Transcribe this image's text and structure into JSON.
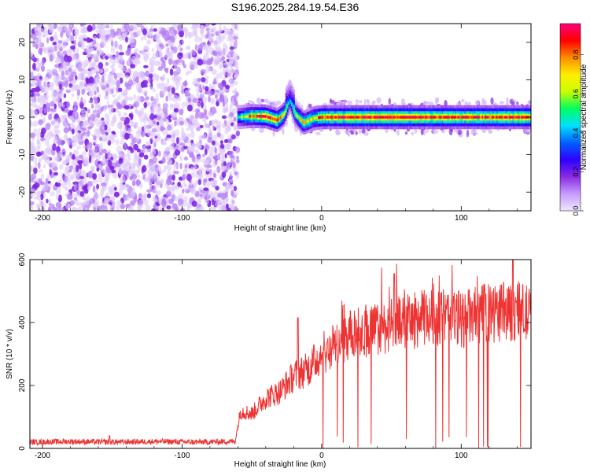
{
  "title": "S196.2025.284.19.54.E36",
  "chart_data": [
    {
      "type": "heatmap",
      "xlabel": "Height of straight line (km)",
      "ylabel": "Frequency (Hz)",
      "xlim": [
        -209,
        150
      ],
      "ylim": [
        -25,
        25
      ],
      "xticks": [
        -200,
        -100,
        0,
        100
      ],
      "yticks": [
        -20,
        -10,
        0,
        10,
        20
      ],
      "colorbar": {
        "label": "Normalized spectral amplitude",
        "range": [
          0,
          0.96
        ],
        "ticks": [
          0.0,
          0.2,
          0.4,
          0.6,
          0.8
        ],
        "tick_labels": [
          "0.0",
          "0.2",
          "0.4",
          "0.6",
          "0.8"
        ],
        "colors": [
          "#f0e8ff",
          "#c79bff",
          "#8a2be2",
          "#2f00ff",
          "#0060ff",
          "#00e0ff",
          "#00ff60",
          "#c8ff00",
          "#ffee00",
          "#ff8c00",
          "#ff0000",
          "#ff0080"
        ]
      },
      "noise_region": {
        "x_range": [
          -209,
          -60
        ],
        "amplitude_range": [
          0.0,
          0.12
        ]
      },
      "signal_ridge": [
        {
          "x": -60,
          "y": 0.0,
          "amplitude": 0.5
        },
        {
          "x": -50,
          "y": 0.3,
          "amplitude": 0.8
        },
        {
          "x": -40,
          "y": 0.2,
          "amplitude": 0.9
        },
        {
          "x": -32,
          "y": -0.8,
          "amplitude": 0.85
        },
        {
          "x": -27,
          "y": 0.8,
          "amplitude": 0.7
        },
        {
          "x": -23,
          "y": 4.5,
          "amplitude": 0.35
        },
        {
          "x": -19,
          "y": 0.8,
          "amplitude": 0.6
        },
        {
          "x": -13,
          "y": -1.5,
          "amplitude": 0.75
        },
        {
          "x": -6,
          "y": -0.3,
          "amplitude": 0.7
        },
        {
          "x": 0,
          "y": 0.0,
          "amplitude": 0.85
        },
        {
          "x": 20,
          "y": 0.0,
          "amplitude": 0.9
        },
        {
          "x": 50,
          "y": 0.0,
          "amplitude": 0.95
        },
        {
          "x": 80,
          "y": 0.0,
          "amplitude": 0.9
        },
        {
          "x": 110,
          "y": 0.0,
          "amplitude": 0.88
        },
        {
          "x": 150,
          "y": 0.0,
          "amplitude": 0.9
        }
      ]
    },
    {
      "type": "line",
      "xlabel": "Height of straight line (km)",
      "ylabel": "SNR (10 * v/v)",
      "xlim": [
        -209,
        150
      ],
      "ylim": [
        0,
        600
      ],
      "xticks": [
        -200,
        -100,
        0,
        100
      ],
      "yticks": [
        0,
        200,
        400,
        600
      ],
      "line_color": "#ee3333",
      "series": [
        {
          "name": "SNR",
          "x": [
            -209,
            -180,
            -150,
            -120,
            -90,
            -62,
            -58,
            -50,
            -40,
            -30,
            -20,
            -10,
            0,
            10,
            20,
            40,
            60,
            80,
            100,
            120,
            140,
            150
          ],
          "y": [
            20,
            22,
            20,
            22,
            20,
            22,
            120,
            110,
            160,
            180,
            230,
            250,
            300,
            330,
            360,
            380,
            400,
            420,
            410,
            430,
            440,
            420
          ],
          "peaks": [
            {
              "x": -152,
              "y": 40
            },
            {
              "x": -17,
              "y": 415
            },
            {
              "x": 52,
              "y": 555
            },
            {
              "x": 137,
              "y": 600
            }
          ]
        }
      ]
    }
  ]
}
